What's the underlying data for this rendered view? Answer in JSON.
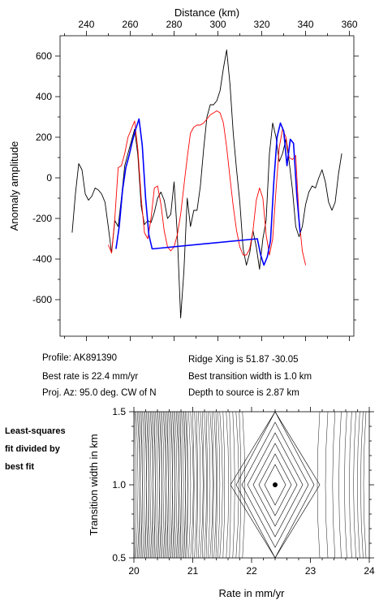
{
  "chart_data": [
    {
      "type": "line",
      "xlabel": "Distance (km)",
      "ylabel": "Anomaly amplitude",
      "xlim": [
        228,
        362
      ],
      "ylim": [
        -780,
        700
      ],
      "x_ticks": [
        240,
        260,
        280,
        300,
        320,
        340,
        360
      ],
      "y_ticks": [
        600,
        400,
        200,
        0,
        -200,
        -400,
        -600
      ],
      "x_axis_position": "top",
      "grid": false,
      "series": [
        {
          "color": "#000000",
          "x": [
            233.5,
            235,
            236.5,
            238,
            239.5,
            241,
            242.5,
            244,
            245.5,
            247,
            248.5,
            250,
            251.5,
            253,
            254.5,
            256,
            257.5,
            259,
            260.5,
            262,
            263.5,
            265,
            266.5,
            268,
            269.5,
            271,
            272.5,
            274,
            275.5,
            277,
            278.5,
            280,
            281.5,
            283,
            284.5,
            286,
            287.5,
            289,
            290.5,
            292,
            293.5,
            295,
            296.5,
            298,
            299.5,
            301,
            302.5,
            304,
            305.5,
            307,
            308.5,
            310,
            311.5,
            313,
            314.5,
            316,
            317.5,
            319,
            320.5,
            322,
            323.5,
            325,
            326.5,
            328,
            329.5,
            331,
            332.5,
            334,
            335.5,
            337,
            338.5,
            340,
            341.5,
            343,
            344.5,
            346,
            347.5,
            349,
            350.5,
            352,
            353.5,
            355,
            356.5
          ],
          "y": [
            -270,
            -80,
            70,
            40,
            -80,
            -110,
            -90,
            -50,
            -60,
            -80,
            -120,
            -240,
            -370,
            -210,
            -240,
            -100,
            60,
            120,
            180,
            240,
            110,
            -140,
            -230,
            -210,
            -220,
            -170,
            -100,
            -70,
            -110,
            -200,
            -180,
            -20,
            -280,
            -690,
            -460,
            -100,
            -240,
            -160,
            -160,
            -40,
            140,
            300,
            360,
            360,
            380,
            430,
            540,
            630,
            460,
            220,
            40,
            -120,
            -350,
            -430,
            -370,
            -260,
            -340,
            -450,
            -300,
            -210,
            120,
            270,
            200,
            80,
            120,
            190,
            80,
            -60,
            -240,
            -290,
            -240,
            -130,
            -70,
            -40,
            -50,
            0,
            40,
            -20,
            -120,
            -160,
            -120,
            20,
            120
          ]
        },
        {
          "color": "#ff0000",
          "x": [
            250,
            251.5,
            253,
            254.5,
            256,
            257.5,
            259,
            260.5,
            262,
            263.5,
            265,
            266.5,
            268,
            269.5,
            271,
            272.5,
            274,
            275.5,
            277,
            278.5,
            280,
            281.5,
            283,
            284.5,
            286,
            287.5,
            289,
            290.5,
            292,
            293.5,
            295,
            296.5,
            298,
            299.5,
            301,
            302.5,
            304,
            305.5,
            307,
            308.5,
            310,
            311.5,
            313,
            314.5,
            316,
            317.5,
            319,
            320.5,
            322,
            323.5,
            325,
            326.5,
            328,
            329.5,
            331,
            332.5,
            334,
            335.5,
            337,
            338.5,
            340
          ],
          "y": [
            -330,
            -370,
            -200,
            50,
            60,
            120,
            200,
            240,
            280,
            140,
            -100,
            -270,
            -300,
            -200,
            -50,
            -40,
            -130,
            -260,
            -340,
            -360,
            -340,
            -280,
            -180,
            -40,
            100,
            220,
            250,
            260,
            260,
            270,
            290,
            310,
            320,
            330,
            320,
            270,
            150,
            0,
            -140,
            -260,
            -340,
            -380,
            -380,
            -350,
            -260,
            -110,
            -50,
            -100,
            -280,
            -380,
            -300,
            -60,
            150,
            240,
            200,
            100,
            90,
            110,
            -200,
            -360,
            -430
          ]
        },
        {
          "color": "#0000ff",
          "x": [
            253.5,
            255,
            256.5,
            258,
            259.5,
            261,
            262.5,
            264,
            265.5,
            267,
            268.5,
            270,
            318,
            319.5,
            321,
            322.5,
            324,
            325.5,
            327,
            328.5,
            330,
            331.5,
            333,
            334.5,
            336,
            337.5
          ],
          "y": [
            -350,
            -240,
            -60,
            50,
            110,
            180,
            240,
            290,
            160,
            -100,
            -280,
            -350,
            -300,
            -380,
            -430,
            -390,
            -310,
            -20,
            200,
            270,
            230,
            60,
            190,
            170,
            -90,
            -270
          ]
        }
      ]
    },
    {
      "type": "contour",
      "xlabel": "Rate in mm/yr",
      "ylabel": "Transition width in km",
      "xlim": [
        20,
        24
      ],
      "ylim": [
        0.5,
        1.5
      ],
      "x_ticks": [
        20,
        21,
        22,
        23,
        24
      ],
      "y_ticks": [
        0.5,
        1.0,
        1.5
      ],
      "minimum": {
        "x": 22.4,
        "y": 1.0
      }
    }
  ],
  "info": {
    "profile": "Profile: AK891390",
    "best_rate": "Best rate is 22.4 mm/yr",
    "proj_az": "Proj. Az: 95.0 deg. CW of N",
    "ridge_xing": "Ridge Xing is 51.87 -30.05",
    "best_width": "Best transition width is 1.0 km",
    "depth": "Depth to source is   2.87 km"
  },
  "side_note": [
    "Least-squares",
    "fit divided by",
    "best fit"
  ]
}
